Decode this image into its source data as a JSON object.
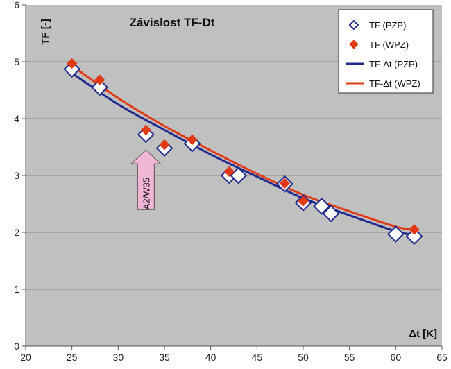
{
  "chart_data": {
    "type": "scatter",
    "title": "Závislost TF-Dt",
    "ylabel": "TF [-]",
    "xlabel": "Δt [K]",
    "xlim": [
      20,
      65
    ],
    "ylim": [
      0,
      6
    ],
    "xticks": [
      "20",
      "25",
      "30",
      "35",
      "40",
      "45",
      "50",
      "55",
      "60",
      "65"
    ],
    "yticks": [
      "0",
      "1",
      "2",
      "3",
      "4",
      "5",
      "6"
    ],
    "grid": true,
    "legend_position": "top-right",
    "colors": {
      "plot_background": "#c0c0c0",
      "pzp": "#1f2a8c",
      "wpz": "#e03a14",
      "arrow": "#f2b6d6"
    },
    "series": [
      {
        "name": "TF (PZP)",
        "kind": "points",
        "marker": "hollow-diamond",
        "x": [
          25,
          28,
          33,
          35,
          38,
          42,
          43,
          48,
          50,
          52,
          53,
          60,
          62
        ],
        "y": [
          4.87,
          4.55,
          3.72,
          3.48,
          3.56,
          3.0,
          3.0,
          2.85,
          2.52,
          2.46,
          2.33,
          1.97,
          1.93
        ]
      },
      {
        "name": "TF (WPZ)",
        "kind": "points",
        "marker": "filled-diamond",
        "x": [
          25,
          28,
          33,
          35,
          38,
          42,
          48,
          50,
          62
        ],
        "y": [
          4.97,
          4.68,
          3.8,
          3.54,
          3.63,
          3.07,
          2.86,
          2.55,
          2.05
        ]
      },
      {
        "name": "TF-Δt (PZP)",
        "kind": "trendline",
        "x": [
          25,
          30,
          35,
          40,
          45,
          50,
          55,
          60,
          62
        ],
        "y": [
          4.8,
          4.25,
          3.8,
          3.37,
          2.98,
          2.6,
          2.3,
          2.02,
          1.95
        ]
      },
      {
        "name": "TF-Δt (WPZ)",
        "kind": "trendline",
        "x": [
          25,
          30,
          35,
          40,
          45,
          50,
          55,
          60,
          62
        ],
        "y": [
          4.93,
          4.36,
          3.87,
          3.44,
          3.03,
          2.66,
          2.37,
          2.1,
          2.05
        ]
      }
    ],
    "annotation": {
      "text": "A2/W35",
      "x": 33,
      "y_base": 2.4,
      "y_tip": 3.45
    }
  }
}
